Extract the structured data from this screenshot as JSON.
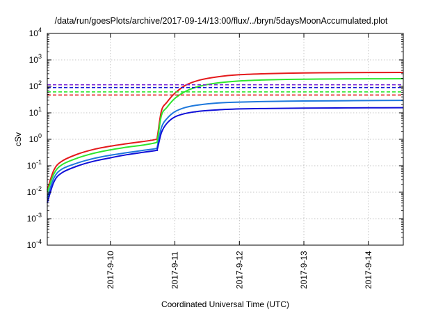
{
  "chart_data": {
    "type": "line",
    "title": "/data/run/goesPlots/archive/2017-09-14/13:00/flux/../bryn/5daysMoonAccumulated.plot",
    "xlabel": "Coordinated Universal Time (UTC)",
    "ylabel": "cSv",
    "x_is_date": true,
    "xlim": [
      "2017-09-09 00:30",
      "2017-09-14 13:00"
    ],
    "x_ticks": [
      {
        "label": "2017-9-10",
        "value": "2017-09-10 00:00"
      },
      {
        "label": "2017-9-11",
        "value": "2017-09-11 00:00"
      },
      {
        "label": "2017-9-12",
        "value": "2017-09-12 00:00"
      },
      {
        "label": "2017-9-13",
        "value": "2017-09-13 00:00"
      },
      {
        "label": "2017-9-14",
        "value": "2017-09-14 00:00"
      }
    ],
    "y_scale": "log",
    "ylim": [
      0.0001,
      10000
    ],
    "y_ticks": [
      {
        "base": "10",
        "exp": "-4",
        "value": 0.0001
      },
      {
        "base": "10",
        "exp": "-3",
        "value": 0.001
      },
      {
        "base": "10",
        "exp": "-2",
        "value": 0.01
      },
      {
        "base": "10",
        "exp": "-1",
        "value": 0.1
      },
      {
        "base": "10",
        "exp": "0",
        "value": 1
      },
      {
        "base": "10",
        "exp": "1",
        "value": 10
      },
      {
        "base": "10",
        "exp": "2",
        "value": 100
      },
      {
        "base": "10",
        "exp": "3",
        "value": 1000
      },
      {
        "base": "10",
        "exp": "4",
        "value": 10000
      }
    ],
    "grid": true,
    "legend": "none",
    "series": [
      {
        "color": "#e41a1c",
        "style": "solid",
        "x": [
          "2017-09-09 00:30",
          "2017-09-09 03:00",
          "2017-09-09 06:00",
          "2017-09-09 12:00",
          "2017-09-09 18:00",
          "2017-09-10 00:00",
          "2017-09-10 06:00",
          "2017-09-10 12:00",
          "2017-09-10 17:00",
          "2017-09-10 17:30",
          "2017-09-10 19:00",
          "2017-09-10 21:00",
          "2017-09-11 00:00",
          "2017-09-11 04:00",
          "2017-09-11 09:00",
          "2017-09-11 16:00",
          "2017-09-12 00:00",
          "2017-09-12 12:00",
          "2017-09-13 00:00",
          "2017-09-13 12:00",
          "2017-09-14 00:00",
          "2017-09-14 13:00"
        ],
        "y": [
          0.012,
          0.07,
          0.15,
          0.28,
          0.42,
          0.55,
          0.68,
          0.82,
          1.0,
          1.3,
          12,
          25,
          55,
          110,
          170,
          230,
          275,
          305,
          320,
          328,
          333,
          337
        ]
      },
      {
        "color": "#2ee62e",
        "style": "solid",
        "x": [
          "2017-09-09 00:30",
          "2017-09-09 03:00",
          "2017-09-09 06:00",
          "2017-09-09 12:00",
          "2017-09-09 18:00",
          "2017-09-10 00:00",
          "2017-09-10 06:00",
          "2017-09-10 12:00",
          "2017-09-10 17:00",
          "2017-09-10 17:30",
          "2017-09-10 19:00",
          "2017-09-10 21:00",
          "2017-09-11 00:00",
          "2017-09-11 04:00",
          "2017-09-11 09:00",
          "2017-09-11 16:00",
          "2017-09-12 00:00",
          "2017-09-12 12:00",
          "2017-09-13 00:00",
          "2017-09-13 12:00",
          "2017-09-14 00:00",
          "2017-09-14 13:00"
        ],
        "y": [
          0.01,
          0.05,
          0.11,
          0.2,
          0.3,
          0.4,
          0.5,
          0.6,
          0.75,
          0.95,
          8,
          16,
          35,
          65,
          100,
          135,
          160,
          178,
          186,
          190,
          193,
          195
        ]
      },
      {
        "color": "#1e78dc",
        "style": "solid",
        "x": [
          "2017-09-09 00:30",
          "2017-09-09 03:00",
          "2017-09-09 06:00",
          "2017-09-09 12:00",
          "2017-09-09 18:00",
          "2017-09-10 00:00",
          "2017-09-10 06:00",
          "2017-09-10 12:00",
          "2017-09-10 17:00",
          "2017-09-10 17:30",
          "2017-09-10 19:00",
          "2017-09-10 21:00",
          "2017-09-11 00:00",
          "2017-09-11 04:00",
          "2017-09-11 09:00",
          "2017-09-11 16:00",
          "2017-09-12 00:00",
          "2017-09-12 12:00",
          "2017-09-13 00:00",
          "2017-09-13 12:00",
          "2017-09-14 00:00",
          "2017-09-14 13:00"
        ],
        "y": [
          0.006,
          0.035,
          0.075,
          0.13,
          0.19,
          0.25,
          0.31,
          0.38,
          0.45,
          0.55,
          2.8,
          6,
          11,
          16,
          20,
          23.5,
          25.5,
          27,
          28,
          28.5,
          29,
          29.5
        ]
      },
      {
        "color": "#1010d8",
        "style": "solid",
        "x": [
          "2017-09-09 00:30",
          "2017-09-09 03:00",
          "2017-09-09 06:00",
          "2017-09-09 12:00",
          "2017-09-09 18:00",
          "2017-09-10 00:00",
          "2017-09-10 06:00",
          "2017-09-10 12:00",
          "2017-09-10 17:00",
          "2017-09-10 17:30",
          "2017-09-10 19:00",
          "2017-09-10 21:00",
          "2017-09-11 00:00",
          "2017-09-11 04:00",
          "2017-09-11 09:00",
          "2017-09-11 16:00",
          "2017-09-12 00:00",
          "2017-09-12 12:00",
          "2017-09-13 00:00",
          "2017-09-13 12:00",
          "2017-09-14 00:00",
          "2017-09-14 13:00"
        ],
        "y": [
          0.004,
          0.025,
          0.055,
          0.1,
          0.15,
          0.2,
          0.26,
          0.32,
          0.38,
          0.44,
          1.8,
          4,
          7,
          9.5,
          11.5,
          13,
          14,
          14.6,
          15,
          15.3,
          15.5,
          15.7
        ]
      },
      {
        "color": "#7b2ad6",
        "style": "dashed",
        "constant": 115
      },
      {
        "color": "#1010d8",
        "style": "dashed",
        "constant": 90
      },
      {
        "color": "#2ee62e",
        "style": "dashed",
        "constant": 62
      },
      {
        "color": "#e41a1c",
        "style": "dashed",
        "constant": 47
      }
    ]
  }
}
